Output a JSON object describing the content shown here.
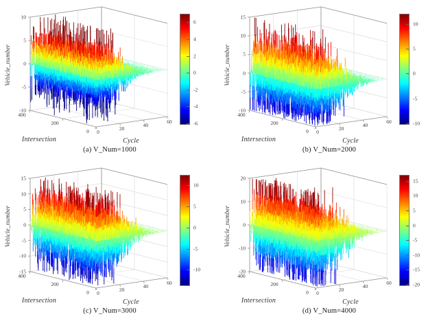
{
  "colormap": "jet",
  "colors": {
    "background": "#ffffff",
    "grid": "#d7d7d7",
    "axis": "#8f8f8f",
    "tick_text": "#3a3a3a",
    "label_text": "#2e2e2e"
  },
  "chart_data": [
    {
      "id": "a",
      "type": "surface3d",
      "caption": "(a) V_Num=1000",
      "xlabel": "Cycle",
      "ylabel": "Intersection",
      "zlabel": "Vehicle_number",
      "xlim": [
        0,
        60
      ],
      "x_ticks": [
        0,
        20,
        40,
        60
      ],
      "ylim": [
        0,
        400
      ],
      "y_ticks": [
        0,
        200,
        400
      ],
      "zlim": [
        -10,
        10
      ],
      "z_ticks": [
        -10,
        -5,
        0,
        5,
        10
      ],
      "clim": [
        -6,
        7
      ],
      "colorbar_ticks": [
        -6,
        -4,
        -2,
        0,
        2,
        4,
        6
      ],
      "surface": {
        "seed": 11,
        "amp": 7,
        "description": "zero-mean spiky noise over Cycle x Intersection; peaks about +6/-7; amplitude decays to ~0 as Cycle approaches 60"
      }
    },
    {
      "id": "b",
      "type": "surface3d",
      "caption": "(b) V_Num=2000",
      "xlabel": "Cycle",
      "ylabel": "Intersection",
      "zlabel": "Vehicle_number",
      "xlim": [
        0,
        60
      ],
      "x_ticks": [
        0,
        20,
        40,
        60
      ],
      "ylim": [
        0,
        400
      ],
      "y_ticks": [
        0,
        200,
        400
      ],
      "zlim": [
        -10,
        15
      ],
      "z_ticks": [
        -10,
        -5,
        0,
        5,
        10,
        15
      ],
      "clim": [
        -10,
        12
      ],
      "colorbar_ticks": [
        -10,
        -5,
        0,
        5,
        10
      ],
      "surface": {
        "seed": 22,
        "amp": 10.5,
        "description": "zero-mean spiky noise; peaks about +10/-10; amplitude decays to ~0 as Cycle approaches 60"
      }
    },
    {
      "id": "c",
      "type": "surface3d",
      "caption": "(c) V_Num=3000",
      "xlabel": "Cycle",
      "ylabel": "Intersection",
      "zlabel": "Vehicle_number",
      "xlim": [
        0,
        60
      ],
      "x_ticks": [
        0,
        20,
        40,
        60
      ],
      "ylim": [
        0,
        400
      ],
      "y_ticks": [
        0,
        200,
        400
      ],
      "zlim": [
        -15,
        15
      ],
      "z_ticks": [
        -15,
        -10,
        -5,
        0,
        5,
        10,
        15
      ],
      "clim": [
        -13.5,
        12.5
      ],
      "colorbar_ticks": [
        -10,
        -5,
        0,
        5,
        10
      ],
      "surface": {
        "seed": 33,
        "amp": 13.5,
        "description": "zero-mean spiky noise; peaks about +12/-13; amplitude decays to ~0 as Cycle approaches 60"
      }
    },
    {
      "id": "d",
      "type": "surface3d",
      "caption": "(d) V_Num=4000",
      "xlabel": "Cycle",
      "ylabel": "Intersection",
      "zlabel": "Vehicle_number",
      "xlim": [
        0,
        60
      ],
      "x_ticks": [
        0,
        20,
        40,
        60
      ],
      "ylim": [
        0,
        400
      ],
      "y_ticks": [
        0,
        200,
        400
      ],
      "zlim": [
        -20,
        20
      ],
      "z_ticks": [
        -20,
        -10,
        0,
        10,
        20
      ],
      "clim": [
        -20,
        17
      ],
      "colorbar_ticks": [
        -20,
        -15,
        -10,
        -5,
        0,
        5,
        10,
        15
      ],
      "surface": {
        "seed": 44,
        "amp": 16.5,
        "description": "zero-mean spiky noise; peaks about +15/-17; amplitude decays to ~0 as Cycle approaches 60"
      }
    }
  ]
}
